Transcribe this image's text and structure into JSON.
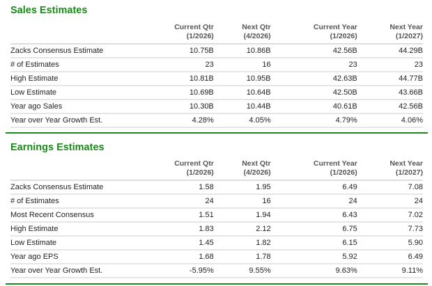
{
  "accent_color": "#1a8a1a",
  "columns": [
    {
      "line1": "Current Qtr",
      "line2": "(1/2026)"
    },
    {
      "line1": "Next Qtr",
      "line2": "(4/2026)"
    },
    {
      "line1": "Current Year",
      "line2": "(1/2026)"
    },
    {
      "line1": "Next Year",
      "line2": "(1/2027)"
    }
  ],
  "sales": {
    "title": "Sales Estimates",
    "rows": [
      {
        "label": "Zacks Consensus Estimate",
        "values": [
          "10.75B",
          "10.86B",
          "42.56B",
          "44.29B"
        ]
      },
      {
        "label": "# of Estimates",
        "values": [
          "23",
          "16",
          "23",
          "23"
        ]
      },
      {
        "label": "High Estimate",
        "values": [
          "10.81B",
          "10.95B",
          "42.63B",
          "44.77B"
        ]
      },
      {
        "label": "Low Estimate",
        "values": [
          "10.69B",
          "10.64B",
          "42.50B",
          "43.66B"
        ]
      },
      {
        "label": "Year ago Sales",
        "values": [
          "10.30B",
          "10.44B",
          "40.61B",
          "42.56B"
        ]
      },
      {
        "label": "Year over Year Growth Est.",
        "values": [
          "4.28%",
          "4.05%",
          "4.79%",
          "4.06%"
        ]
      }
    ]
  },
  "earnings": {
    "title": "Earnings Estimates",
    "rows": [
      {
        "label": "Zacks Consensus Estimate",
        "values": [
          "1.58",
          "1.95",
          "6.49",
          "7.08"
        ]
      },
      {
        "label": "# of Estimates",
        "values": [
          "24",
          "16",
          "24",
          "24"
        ]
      },
      {
        "label": "Most Recent Consensus",
        "values": [
          "1.51",
          "1.94",
          "6.43",
          "7.02"
        ]
      },
      {
        "label": "High Estimate",
        "values": [
          "1.83",
          "2.12",
          "6.75",
          "7.73"
        ]
      },
      {
        "label": "Low Estimate",
        "values": [
          "1.45",
          "1.82",
          "6.15",
          "5.90"
        ]
      },
      {
        "label": "Year ago EPS",
        "values": [
          "1.68",
          "1.78",
          "5.92",
          "6.49"
        ]
      },
      {
        "label": "Year over Year Growth Est.",
        "values": [
          "-5.95%",
          "9.55%",
          "9.63%",
          "9.11%"
        ]
      }
    ]
  }
}
